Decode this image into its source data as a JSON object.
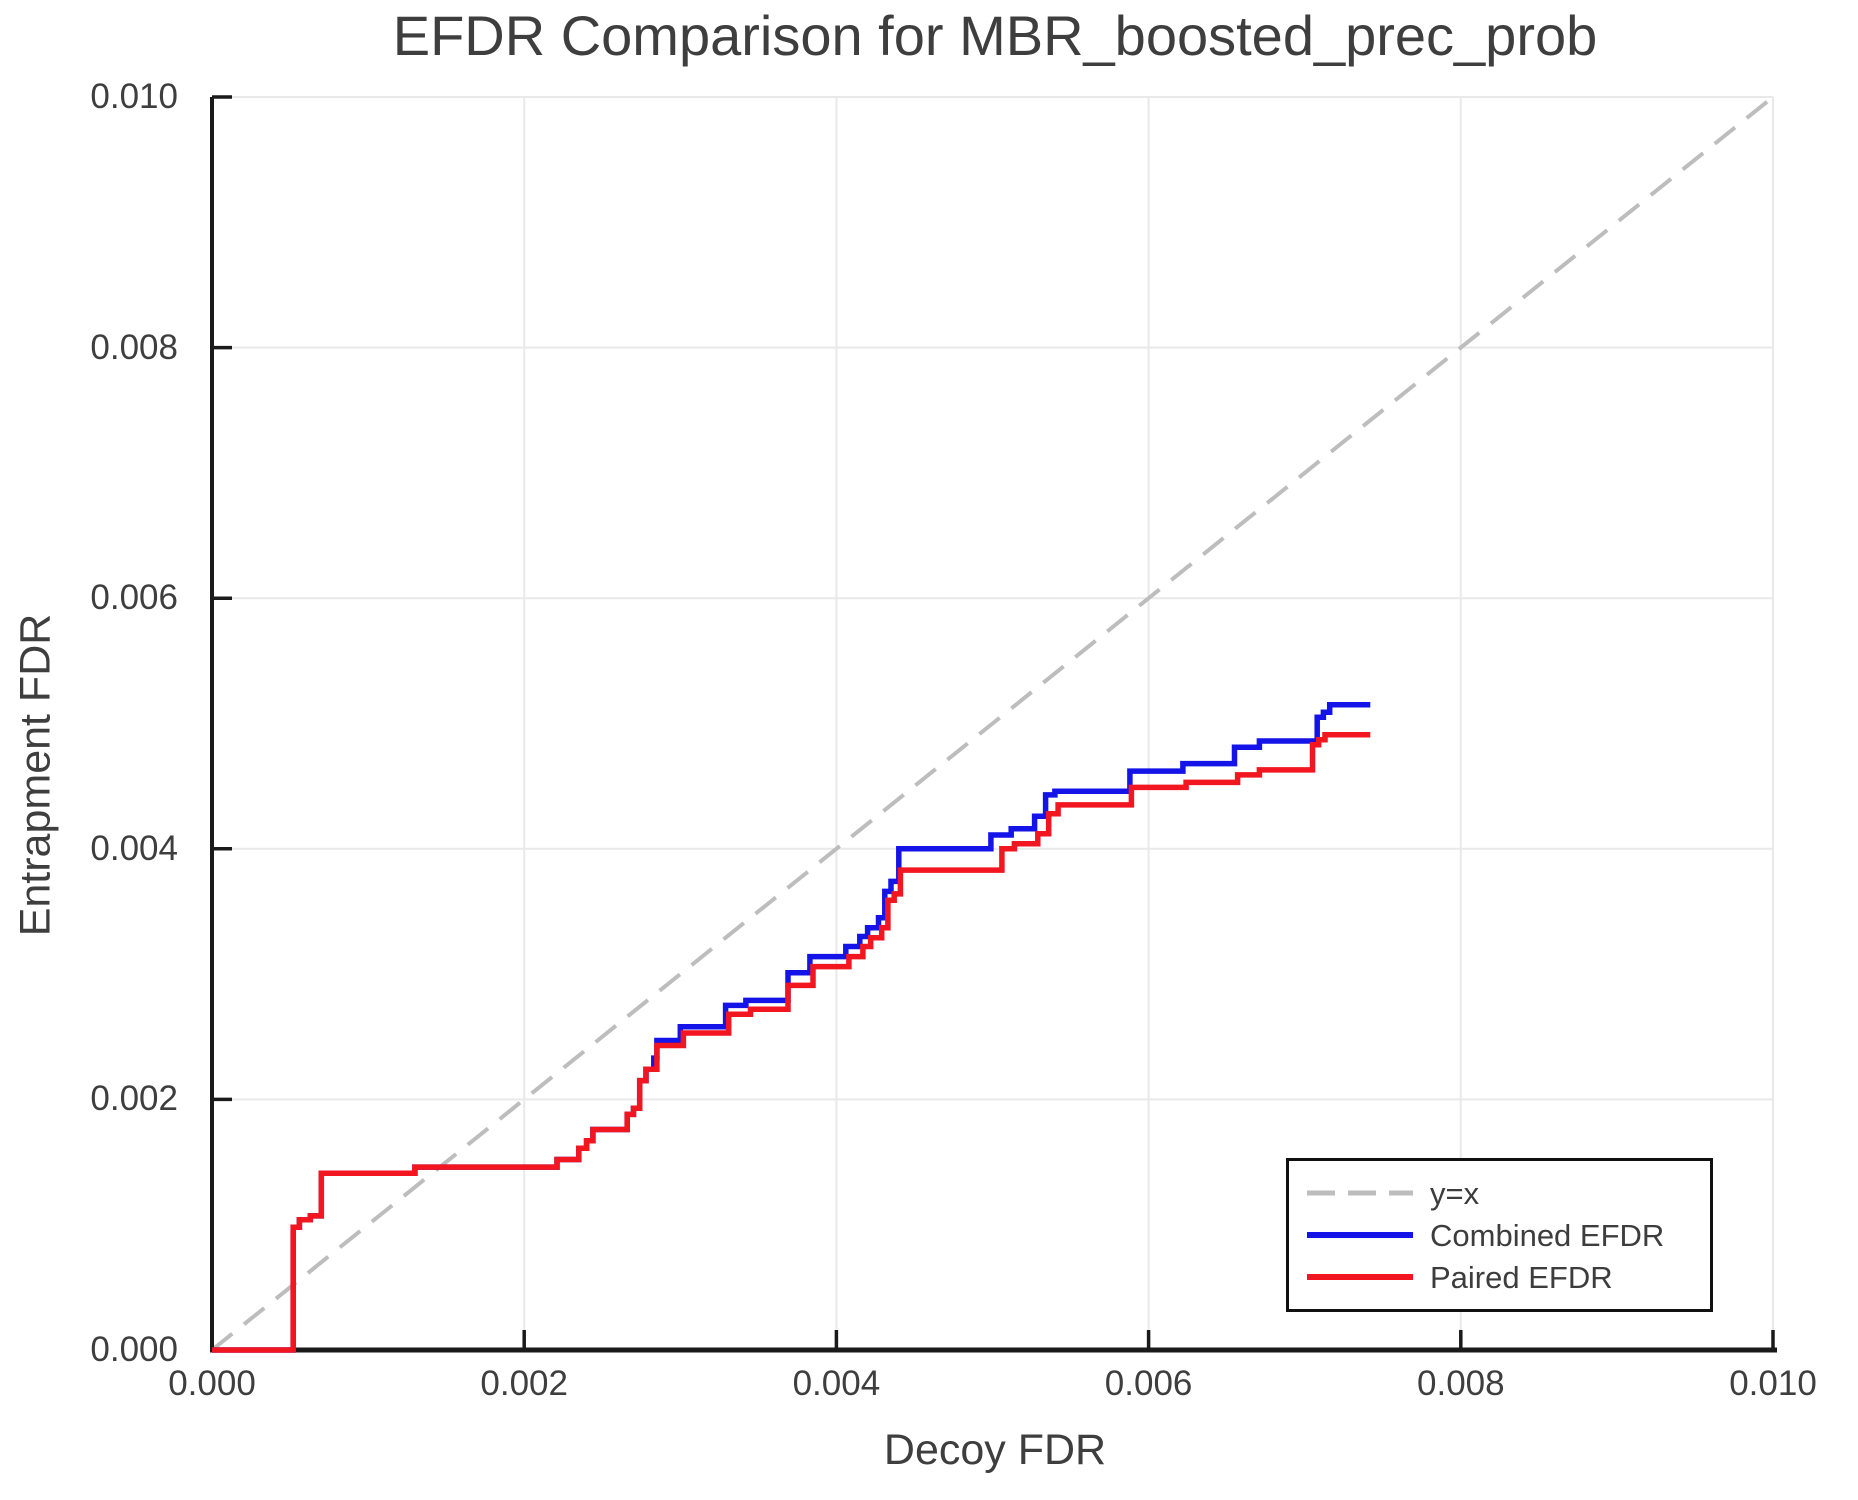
{
  "chart_data": {
    "type": "line",
    "title": "EFDR Comparison for MBR_boosted_prec_prob",
    "xlabel": "Decoy FDR",
    "ylabel": "Entrapment FDR",
    "xlim": [
      0.0,
      0.01
    ],
    "ylim": [
      0.0,
      0.01
    ],
    "grid": true,
    "legend_position": "lower right",
    "xticks": [
      {
        "value": 0.0,
        "label": "0.000"
      },
      {
        "value": 0.002,
        "label": "0.002"
      },
      {
        "value": 0.004,
        "label": "0.004"
      },
      {
        "value": 0.006,
        "label": "0.006"
      },
      {
        "value": 0.008,
        "label": "0.008"
      },
      {
        "value": 0.01,
        "label": "0.010"
      }
    ],
    "yticks": [
      {
        "value": 0.0,
        "label": "0.000"
      },
      {
        "value": 0.002,
        "label": "0.002"
      },
      {
        "value": 0.004,
        "label": "0.004"
      },
      {
        "value": 0.006,
        "label": "0.006"
      },
      {
        "value": 0.008,
        "label": "0.008"
      },
      {
        "value": 0.01,
        "label": "0.010"
      }
    ],
    "reference_line": {
      "label": "y=x",
      "style": "dashed",
      "color": "#bdbdbd",
      "from": [
        0.0,
        0.0
      ],
      "to": [
        0.01,
        0.01
      ]
    },
    "series": [
      {
        "name": "Combined EFDR",
        "id": "combined-efdr",
        "color": "#1414e8",
        "step": "post",
        "points": [
          [
            0.0,
            0.0
          ],
          [
            0.00052,
            0.00098
          ],
          [
            0.00056,
            0.00104
          ],
          [
            0.00063,
            0.00107
          ],
          [
            0.0007,
            0.00141
          ],
          [
            0.0013,
            0.00146
          ],
          [
            0.00221,
            0.00152
          ],
          [
            0.00235,
            0.00161
          ],
          [
            0.0024,
            0.00167
          ],
          [
            0.00244,
            0.00176
          ],
          [
            0.00266,
            0.00188
          ],
          [
            0.0027,
            0.00193
          ],
          [
            0.00274,
            0.00215
          ],
          [
            0.00278,
            0.00224
          ],
          [
            0.00283,
            0.00233
          ],
          [
            0.00285,
            0.00247
          ],
          [
            0.003,
            0.00258
          ],
          [
            0.00329,
            0.00275
          ],
          [
            0.00342,
            0.00279
          ],
          [
            0.00369,
            0.00301
          ],
          [
            0.00383,
            0.00314
          ],
          [
            0.00406,
            0.00322
          ],
          [
            0.00415,
            0.0033
          ],
          [
            0.0042,
            0.00337
          ],
          [
            0.00427,
            0.00345
          ],
          [
            0.00431,
            0.00366
          ],
          [
            0.00435,
            0.00374
          ],
          [
            0.0044,
            0.004
          ],
          [
            0.00499,
            0.00411
          ],
          [
            0.00512,
            0.00416
          ],
          [
            0.00527,
            0.00426
          ],
          [
            0.00534,
            0.00443
          ],
          [
            0.0054,
            0.00446
          ],
          [
            0.00588,
            0.00462
          ],
          [
            0.00622,
            0.00468
          ],
          [
            0.00655,
            0.00481
          ],
          [
            0.00671,
            0.00486
          ],
          [
            0.00708,
            0.00505
          ],
          [
            0.00712,
            0.00509
          ],
          [
            0.00716,
            0.00515
          ],
          [
            0.00742,
            0.00515
          ]
        ]
      },
      {
        "name": "Paired EFDR",
        "id": "paired-efdr",
        "color": "#f21620",
        "step": "post",
        "points": [
          [
            0.0,
            0.0
          ],
          [
            0.00052,
            0.00098
          ],
          [
            0.00056,
            0.00104
          ],
          [
            0.00063,
            0.00107
          ],
          [
            0.0007,
            0.00141
          ],
          [
            0.0013,
            0.00146
          ],
          [
            0.00221,
            0.00152
          ],
          [
            0.00235,
            0.00161
          ],
          [
            0.0024,
            0.00167
          ],
          [
            0.00244,
            0.00176
          ],
          [
            0.00266,
            0.00188
          ],
          [
            0.0027,
            0.00193
          ],
          [
            0.00274,
            0.00215
          ],
          [
            0.00278,
            0.00224
          ],
          [
            0.00285,
            0.00243
          ],
          [
            0.00302,
            0.00253
          ],
          [
            0.00331,
            0.00268
          ],
          [
            0.00345,
            0.00272
          ],
          [
            0.00369,
            0.00291
          ],
          [
            0.00385,
            0.00306
          ],
          [
            0.00408,
            0.00314
          ],
          [
            0.00417,
            0.00322
          ],
          [
            0.00422,
            0.00329
          ],
          [
            0.00429,
            0.00337
          ],
          [
            0.00433,
            0.00359
          ],
          [
            0.00437,
            0.00364
          ],
          [
            0.00441,
            0.00383
          ],
          [
            0.00506,
            0.004
          ],
          [
            0.00514,
            0.00404
          ],
          [
            0.00529,
            0.00412
          ],
          [
            0.00536,
            0.00428
          ],
          [
            0.00542,
            0.00435
          ],
          [
            0.00589,
            0.00449
          ],
          [
            0.00624,
            0.00453
          ],
          [
            0.00657,
            0.00459
          ],
          [
            0.00671,
            0.00463
          ],
          [
            0.00705,
            0.00483
          ],
          [
            0.00709,
            0.00487
          ],
          [
            0.00713,
            0.00491
          ],
          [
            0.00742,
            0.00491
          ]
        ]
      }
    ],
    "style": {
      "grid_color": "#e9e9e9",
      "spine_color": "#1a1a1a",
      "text_color": "#3e3e3e",
      "background": "#ffffff",
      "line_width": 5.5,
      "reference_dash": "26 15"
    }
  },
  "legend": {
    "items": [
      {
        "label": "y=x"
      },
      {
        "label": "Combined EFDR"
      },
      {
        "label": "Paired EFDR"
      }
    ]
  }
}
